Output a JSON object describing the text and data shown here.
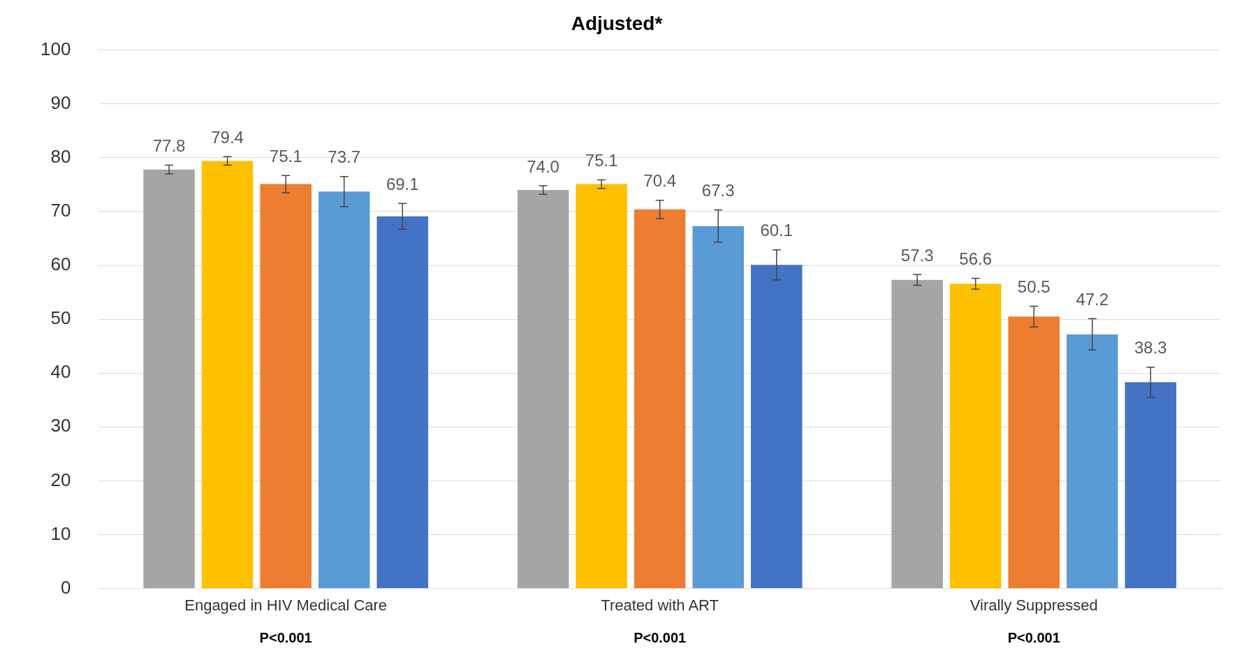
{
  "chart_data": {
    "type": "bar",
    "title": "Adjusted*",
    "categories": [
      "Engaged in HIV Medical Care",
      "Treated with ART",
      "Virally Suppressed"
    ],
    "series": [
      {
        "color": "#a5a5a5",
        "values": [
          77.8,
          74.0,
          57.3
        ],
        "value_labels": [
          "77.8",
          "74.0",
          "57.3"
        ],
        "errors": [
          0.8,
          0.8,
          1.0
        ]
      },
      {
        "color": "#ffc000",
        "values": [
          79.4,
          75.1,
          56.6
        ],
        "errors": [
          0.8,
          0.8,
          1.0
        ]
      },
      {
        "color": "#ed7d31",
        "values": [
          75.1,
          70.4,
          50.5
        ],
        "errors": [
          1.6,
          1.7,
          1.9
        ]
      },
      {
        "color": "#5b9bd5",
        "values": [
          73.7,
          67.3,
          47.2
        ],
        "errors": [
          2.8,
          3.0,
          2.9
        ]
      },
      {
        "color": "#4472c4",
        "values": [
          69.1,
          60.1,
          38.3
        ],
        "errors": [
          2.4,
          2.8,
          2.8
        ]
      }
    ],
    "ylim": [
      0,
      100
    ],
    "yticks": [
      0,
      10,
      20,
      30,
      40,
      50,
      60,
      70,
      80,
      90,
      100
    ],
    "grid": "y",
    "data_labels": true,
    "legend": false,
    "annotations": [
      "P<0.001",
      "P<0.001",
      "P<0.001"
    ]
  }
}
